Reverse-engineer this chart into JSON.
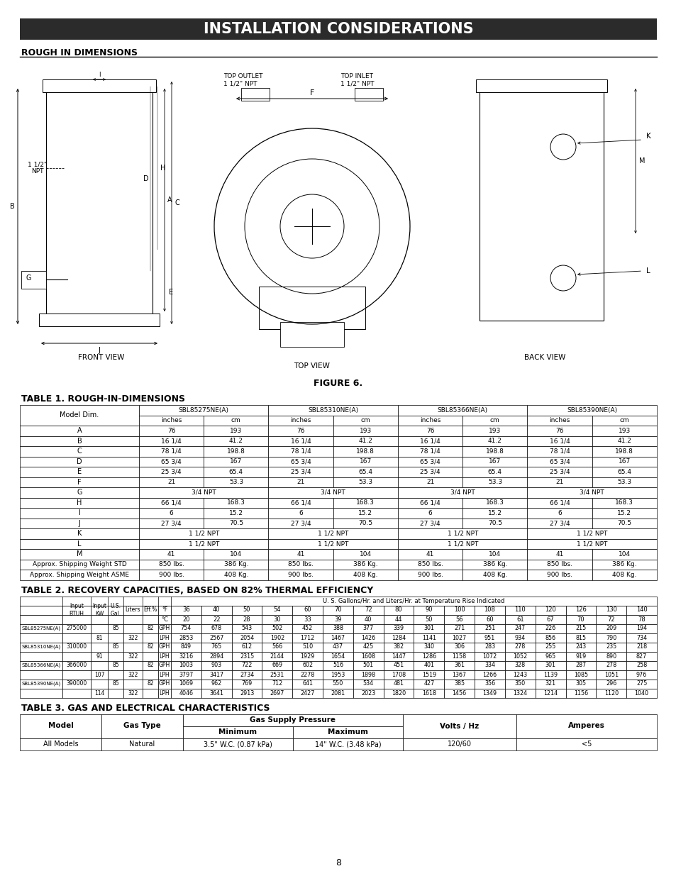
{
  "title": "INSTALLATION CONSIDERATIONS",
  "section1_title": "ROUGH IN DIMENSIONS",
  "figure_label": "FIGURE 6.",
  "table1_title": "TABLE 1. ROUGH-IN-DIMENSIONS",
  "table2_title": "TABLE 2. RECOVERY CAPACITIES, BASED ON 82% THERMAL EFFICIENCY",
  "table3_title": "TABLE 3. GAS AND ELECTRICAL CHARACTERISTICS",
  "page_number": "8",
  "table1_models": [
    "SBL85275NE(A)",
    "SBL85310NE(A)",
    "SBL85366NE(A)",
    "SBL85390NE(A)"
  ],
  "table1_rows": [
    [
      "A",
      "76",
      "193",
      "76",
      "193",
      "76",
      "193",
      "76",
      "193"
    ],
    [
      "B",
      "16 1/4",
      "41.2",
      "16 1/4",
      "41.2",
      "16 1/4",
      "41.2",
      "16 1/4",
      "41.2"
    ],
    [
      "C",
      "78 1/4",
      "198.8",
      "78 1/4",
      "198.8",
      "78 1/4",
      "198.8",
      "78 1/4",
      "198.8"
    ],
    [
      "D",
      "65 3/4",
      "167",
      "65 3/4",
      "167",
      "65 3/4",
      "167",
      "65 3/4",
      "167"
    ],
    [
      "E",
      "25 3/4",
      "65.4",
      "25 3/4",
      "65.4",
      "25 3/4",
      "65.4",
      "25 3/4",
      "65.4"
    ],
    [
      "F",
      "21",
      "53.3",
      "21",
      "53.3",
      "21",
      "53.3",
      "21",
      "53.3"
    ],
    [
      "G",
      "3/4 NPT",
      "",
      "3/4 NPT",
      "",
      "3/4 NPT",
      "",
      "3/4 NPT",
      ""
    ],
    [
      "H",
      "66 1/4",
      "168.3",
      "66 1/4",
      "168.3",
      "66 1/4",
      "168.3",
      "66 1/4",
      "168.3"
    ],
    [
      "I",
      "6",
      "15.2",
      "6",
      "15.2",
      "6",
      "15.2",
      "6",
      "15.2"
    ],
    [
      "J",
      "27 3/4",
      "70.5",
      "27 3/4",
      "70.5",
      "27 3/4",
      "70.5",
      "27 3/4",
      "70.5"
    ],
    [
      "K",
      "1 1/2 NPT",
      "",
      "1 1/2 NPT",
      "",
      "1 1/2 NPT",
      "",
      "1 1/2 NPT",
      ""
    ],
    [
      "L",
      "1 1/2 NPT",
      "",
      "1 1/2 NPT",
      "",
      "1 1/2 NPT",
      "",
      "1 1/2 NPT",
      ""
    ],
    [
      "M",
      "41",
      "104",
      "41",
      "104",
      "41",
      "104",
      "41",
      "104"
    ],
    [
      "Approx. Shipping Weight STD",
      "850 lbs.",
      "386 Kg.",
      "850 lbs.",
      "386 Kg.",
      "850 lbs.",
      "386 Kg.",
      "850 lbs.",
      "386 Kg."
    ],
    [
      "Approx. Shipping Weight ASME",
      "900 lbs.",
      "408 Kg.",
      "900 lbs.",
      "408 Kg.",
      "900 lbs.",
      "408 Kg.",
      "900 lbs.",
      "408 Kg."
    ]
  ],
  "table2_header1": "U. S. Gallons/Hr. and Liters/Hr. at Temperature Rise Indicated",
  "temp_cols_F": [
    "36",
    "40",
    "50",
    "54",
    "60",
    "70",
    "72",
    "80",
    "90",
    "100",
    "108",
    "110",
    "120",
    "126",
    "130",
    "140"
  ],
  "temp_cols_C": [
    "20",
    "22",
    "28",
    "30",
    "33",
    "39",
    "40",
    "44",
    "50",
    "56",
    "60",
    "61",
    "67",
    "70",
    "72",
    "78"
  ],
  "table2_rows": [
    [
      "SBL85275NE(A)",
      "275000",
      "",
      "85",
      "",
      "82",
      "GPH",
      "754",
      "678",
      "543",
      "502",
      "452",
      "388",
      "377",
      "339",
      "301",
      "271",
      "251",
      "247",
      "226",
      "215",
      "209",
      "194"
    ],
    [
      "",
      "",
      "81",
      "",
      "322",
      "",
      "LPH",
      "2853",
      "2567",
      "2054",
      "1902",
      "1712",
      "1467",
      "1426",
      "1284",
      "1141",
      "1027",
      "951",
      "934",
      "856",
      "815",
      "790",
      "734"
    ],
    [
      "SBL85310NE(A)",
      "310000",
      "",
      "85",
      "",
      "82",
      "GPH",
      "849",
      "765",
      "612",
      "566",
      "510",
      "437",
      "425",
      "382",
      "340",
      "306",
      "283",
      "278",
      "255",
      "243",
      "235",
      "218"
    ],
    [
      "",
      "",
      "91",
      "",
      "322",
      "",
      "LPH",
      "3216",
      "2894",
      "2315",
      "2144",
      "1929",
      "1654",
      "1608",
      "1447",
      "1286",
      "1158",
      "1072",
      "1052",
      "965",
      "919",
      "890",
      "827"
    ],
    [
      "SBL85366NE(A)",
      "366000",
      "",
      "85",
      "",
      "82",
      "GPH",
      "1003",
      "903",
      "722",
      "669",
      "602",
      "516",
      "501",
      "451",
      "401",
      "361",
      "334",
      "328",
      "301",
      "287",
      "278",
      "258"
    ],
    [
      "",
      "",
      "107",
      "",
      "322",
      "",
      "LPH",
      "3797",
      "3417",
      "2734",
      "2531",
      "2278",
      "1953",
      "1898",
      "1708",
      "1519",
      "1367",
      "1266",
      "1243",
      "1139",
      "1085",
      "1051",
      "976"
    ],
    [
      "SBL85390NE(A)",
      "390000",
      "",
      "85",
      "",
      "82",
      "GPH",
      "1069",
      "962",
      "769",
      "712",
      "641",
      "550",
      "534",
      "481",
      "427",
      "385",
      "356",
      "350",
      "321",
      "305",
      "296",
      "275"
    ],
    [
      "",
      "",
      "114",
      "",
      "322",
      "",
      "LPH",
      "4046",
      "3641",
      "2913",
      "2697",
      "2427",
      "2081",
      "2023",
      "1820",
      "1618",
      "1456",
      "1349",
      "1324",
      "1214",
      "1156",
      "1120",
      "1040"
    ]
  ],
  "table3_rows": [
    [
      "All Models",
      "Natural",
      "3.5\" W.C. (0.87 kPa)",
      "14\" W.C. (3.48 kPa)",
      "120/60",
      "<5"
    ]
  ],
  "bg_color": "#ffffff",
  "header_bg": "#2b2b2b",
  "header_fg": "#ffffff"
}
